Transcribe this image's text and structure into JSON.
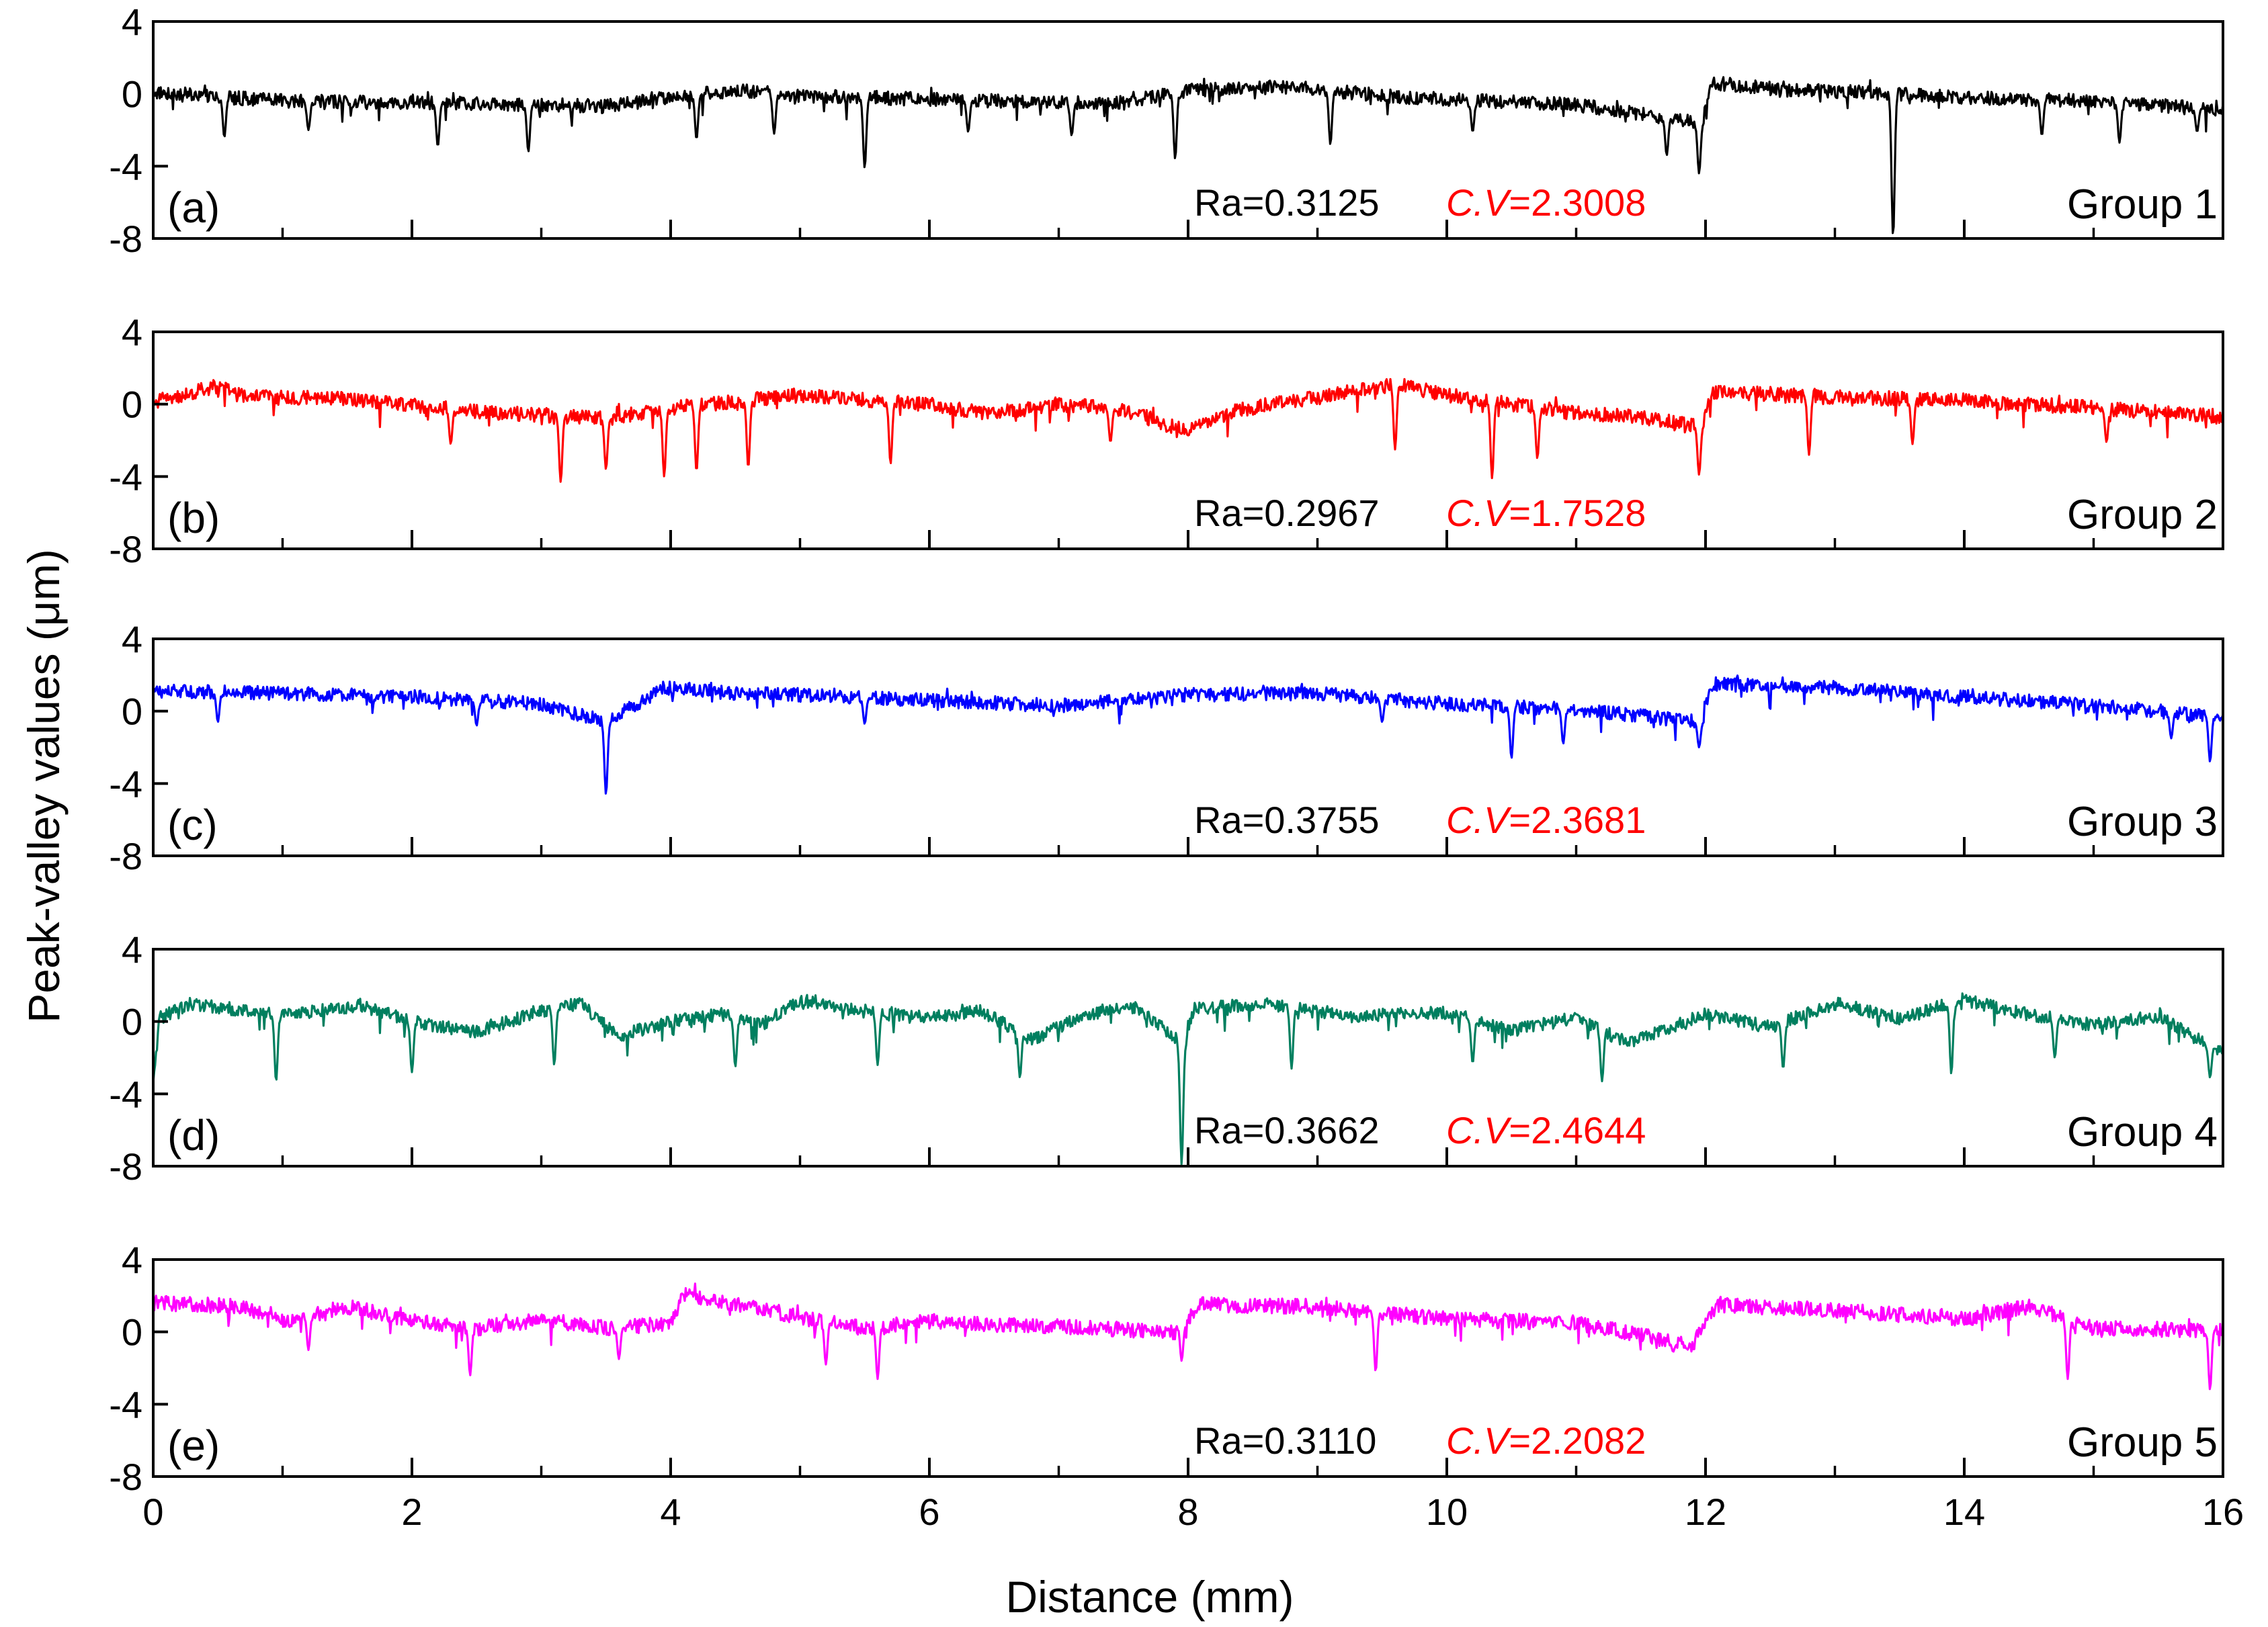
{
  "chart_data": {
    "type": "line",
    "title": "",
    "xlabel": "Distance (mm)",
    "ylabel": "Peak-valley values (μm)",
    "xlim": [
      0,
      16
    ],
    "ylim": [
      -8,
      4
    ],
    "xticks": [
      "0",
      "2",
      "4",
      "6",
      "8",
      "10",
      "12",
      "14",
      "16"
    ],
    "yticks": [
      "4",
      "0",
      "-4",
      "-8"
    ],
    "panels": [
      {
        "letter": "(a)",
        "group": "Group 1",
        "ra": "Ra=0.3125",
        "cv_name": "C.V",
        "cv_value": "=2.3008",
        "color": "#000000",
        "baseline": [
          [
            0,
            0.1
          ],
          [
            1,
            -0.4
          ],
          [
            2,
            -0.5
          ],
          [
            3,
            -0.6
          ],
          [
            3.5,
            -0.7
          ],
          [
            4,
            -0.2
          ],
          [
            4.5,
            0.2
          ],
          [
            5,
            -0.1
          ],
          [
            6,
            -0.3
          ],
          [
            7,
            -0.5
          ],
          [
            7.5,
            -0.5
          ],
          [
            8,
            0.2
          ],
          [
            8.8,
            0.4
          ],
          [
            9.5,
            -0.1
          ],
          [
            10,
            -0.3
          ],
          [
            11,
            -0.6
          ],
          [
            11.5,
            -1.1
          ],
          [
            11.95,
            -1.6
          ],
          [
            12.05,
            0.6
          ],
          [
            12.5,
            0.3
          ],
          [
            13.5,
            0.0
          ],
          [
            14,
            -0.2
          ],
          [
            15,
            -0.4
          ],
          [
            16,
            -0.9
          ]
        ],
        "spikes": [
          [
            0.55,
            -2.4
          ],
          [
            1.2,
            -2.0
          ],
          [
            2.2,
            -2.9
          ],
          [
            2.9,
            -3.2
          ],
          [
            4.2,
            -2.5
          ],
          [
            4.8,
            -2.2
          ],
          [
            5.5,
            -4.1
          ],
          [
            6.3,
            -2.1
          ],
          [
            7.1,
            -2.3
          ],
          [
            7.9,
            -3.6
          ],
          [
            9.1,
            -2.8
          ],
          [
            10.2,
            -2.1
          ],
          [
            11.7,
            -3.4
          ],
          [
            11.95,
            -4.4
          ],
          [
            13.45,
            -7.9
          ],
          [
            14.6,
            -2.3
          ],
          [
            15.2,
            -2.7
          ],
          [
            15.8,
            -2.1
          ]
        ],
        "noise": 0.38
      },
      {
        "letter": "(b)",
        "group": "Group 2",
        "ra": "Ra=0.2967",
        "cv_name": "C.V",
        "cv_value": "=1.7528",
        "color": "#ff0000",
        "baseline": [
          [
            0,
            0.1
          ],
          [
            0.5,
            1.0
          ],
          [
            0.7,
            0.4
          ],
          [
            1.5,
            0.3
          ],
          [
            2.5,
            -0.4
          ],
          [
            3,
            -0.6
          ],
          [
            3.5,
            -0.8
          ],
          [
            4,
            -0.2
          ],
          [
            5,
            0.5
          ],
          [
            6,
            0.0
          ],
          [
            6.5,
            -0.6
          ],
          [
            7,
            0.0
          ],
          [
            7.5,
            -0.3
          ],
          [
            8,
            -1.5
          ],
          [
            8.4,
            -0.3
          ],
          [
            9.6,
            1.1
          ],
          [
            10,
            0.5
          ],
          [
            11,
            -0.5
          ],
          [
            11.5,
            -0.7
          ],
          [
            11.95,
            -1.2
          ],
          [
            12.05,
            0.7
          ],
          [
            13,
            0.4
          ],
          [
            14,
            0.2
          ],
          [
            15,
            -0.2
          ],
          [
            16,
            -0.7
          ]
        ],
        "spikes": [
          [
            2.3,
            -2.2
          ],
          [
            3.15,
            -4.3
          ],
          [
            3.5,
            -3.6
          ],
          [
            3.95,
            -4.0
          ],
          [
            4.2,
            -3.7
          ],
          [
            4.6,
            -3.5
          ],
          [
            5.7,
            -3.3
          ],
          [
            7.4,
            -2.1
          ],
          [
            9.6,
            -2.5
          ],
          [
            10.35,
            -4.1
          ],
          [
            10.7,
            -3.0
          ],
          [
            11.95,
            -3.9
          ],
          [
            12.8,
            -2.8
          ],
          [
            13.6,
            -2.2
          ],
          [
            15.1,
            -2.1
          ]
        ],
        "noise": 0.4
      },
      {
        "letter": "(c)",
        "group": "Group 3",
        "ra": "Ra=0.3755",
        "cv_name": "C.V",
        "cv_value": "=2.3681",
        "color": "#0000ff",
        "baseline": [
          [
            0,
            1.1
          ],
          [
            1,
            1.0
          ],
          [
            2,
            0.8
          ],
          [
            3,
            0.4
          ],
          [
            3.5,
            -0.6
          ],
          [
            3.95,
            1.3
          ],
          [
            4.5,
            1.0
          ],
          [
            5,
            0.9
          ],
          [
            6,
            0.6
          ],
          [
            7,
            0.3
          ],
          [
            8,
            0.9
          ],
          [
            9,
            1.0
          ],
          [
            10,
            0.4
          ],
          [
            11,
            0.1
          ],
          [
            11.95,
            -0.6
          ],
          [
            12.05,
            1.5
          ],
          [
            13,
            1.3
          ],
          [
            14,
            0.8
          ],
          [
            15,
            0.3
          ],
          [
            16,
            -0.3
          ]
        ],
        "spikes": [
          [
            0.5,
            -0.6
          ],
          [
            2.5,
            -0.8
          ],
          [
            3.5,
            -4.6
          ],
          [
            5.5,
            -0.7
          ],
          [
            9.5,
            -0.6
          ],
          [
            10.5,
            -2.6
          ],
          [
            10.9,
            -1.8
          ],
          [
            11.95,
            -2.0
          ],
          [
            15.6,
            -1.5
          ],
          [
            15.9,
            -2.8
          ]
        ],
        "noise": 0.38
      },
      {
        "letter": "(d)",
        "group": "Group 4",
        "ra": "Ra=0.3662",
        "cv_name": "C.V",
        "cv_value": "=2.4644",
        "color": "#007f5f",
        "baseline": [
          [
            0,
            -3.6
          ],
          [
            0.05,
            0.2
          ],
          [
            0.3,
            1.0
          ],
          [
            1,
            0.3
          ],
          [
            1.6,
            0.9
          ],
          [
            2,
            0.0
          ],
          [
            2.5,
            -0.6
          ],
          [
            3,
            0.6
          ],
          [
            3.3,
            1.0
          ],
          [
            3.6,
            -0.8
          ],
          [
            4,
            0.0
          ],
          [
            4.4,
            0.4
          ],
          [
            4.7,
            -0.2
          ],
          [
            5,
            1.2
          ],
          [
            5.5,
            0.5
          ],
          [
            6,
            0.2
          ],
          [
            6.4,
            0.6
          ],
          [
            6.8,
            -1.0
          ],
          [
            7.2,
            0.4
          ],
          [
            7.6,
            0.8
          ],
          [
            7.95,
            -1.2
          ],
          [
            8.05,
            0.7
          ],
          [
            8.6,
            1.0
          ],
          [
            9.2,
            0.3
          ],
          [
            10,
            0.5
          ],
          [
            10.5,
            -0.5
          ],
          [
            11,
            0.2
          ],
          [
            11.4,
            -1.2
          ],
          [
            12,
            0.4
          ],
          [
            12.5,
            -0.3
          ],
          [
            13,
            1.0
          ],
          [
            13.5,
            0.2
          ],
          [
            14,
            1.2
          ],
          [
            14.5,
            0.4
          ],
          [
            15,
            -0.2
          ],
          [
            15.5,
            0.3
          ],
          [
            16,
            -1.8
          ]
        ],
        "spikes": [
          [
            0.95,
            -3.3
          ],
          [
            2.0,
            -2.8
          ],
          [
            3.1,
            -2.4
          ],
          [
            4.5,
            -2.5
          ],
          [
            5.6,
            -2.4
          ],
          [
            6.7,
            -3.1
          ],
          [
            7.95,
            -7.9
          ],
          [
            8.8,
            -2.6
          ],
          [
            10.2,
            -2.3
          ],
          [
            11.2,
            -3.3
          ],
          [
            12.6,
            -2.6
          ],
          [
            13.9,
            -2.9
          ],
          [
            14.7,
            -2.0
          ],
          [
            15.9,
            -3.1
          ]
        ],
        "noise": 0.36
      },
      {
        "letter": "(e)",
        "group": "Group 5",
        "ra": "Ra=0.3110",
        "cv_name": "C.V",
        "cv_value": "=2.2082",
        "color": "#ff00ff",
        "baseline": [
          [
            0,
            1.6
          ],
          [
            0.7,
            1.4
          ],
          [
            1,
            0.6
          ],
          [
            1.5,
            1.4
          ],
          [
            2,
            0.6
          ],
          [
            2.5,
            0.2
          ],
          [
            3,
            0.7
          ],
          [
            3.5,
            0.2
          ],
          [
            4,
            0.5
          ],
          [
            4.1,
            2.1
          ],
          [
            4.7,
            1.3
          ],
          [
            5,
            0.8
          ],
          [
            5.5,
            0.2
          ],
          [
            6,
            0.6
          ],
          [
            6.5,
            0.4
          ],
          [
            7,
            0.3
          ],
          [
            7.9,
            0.0
          ],
          [
            8.1,
            1.5
          ],
          [
            9,
            1.4
          ],
          [
            10,
            0.7
          ],
          [
            11,
            0.5
          ],
          [
            11.5,
            -0.2
          ],
          [
            11.9,
            -0.7
          ],
          [
            12.1,
            1.5
          ],
          [
            13,
            1.2
          ],
          [
            14,
            0.7
          ],
          [
            14.5,
            1.4
          ],
          [
            15,
            0.2
          ],
          [
            16,
            0.1
          ]
        ],
        "spikes": [
          [
            1.2,
            -1.0
          ],
          [
            2.45,
            -2.4
          ],
          [
            3.6,
            -1.5
          ],
          [
            5.2,
            -1.8
          ],
          [
            5.6,
            -2.6
          ],
          [
            7.95,
            -1.6
          ],
          [
            9.45,
            -2.2
          ],
          [
            11.75,
            -1.1
          ],
          [
            14.8,
            -2.6
          ],
          [
            15.9,
            -3.2
          ]
        ],
        "noise": 0.42
      }
    ]
  }
}
